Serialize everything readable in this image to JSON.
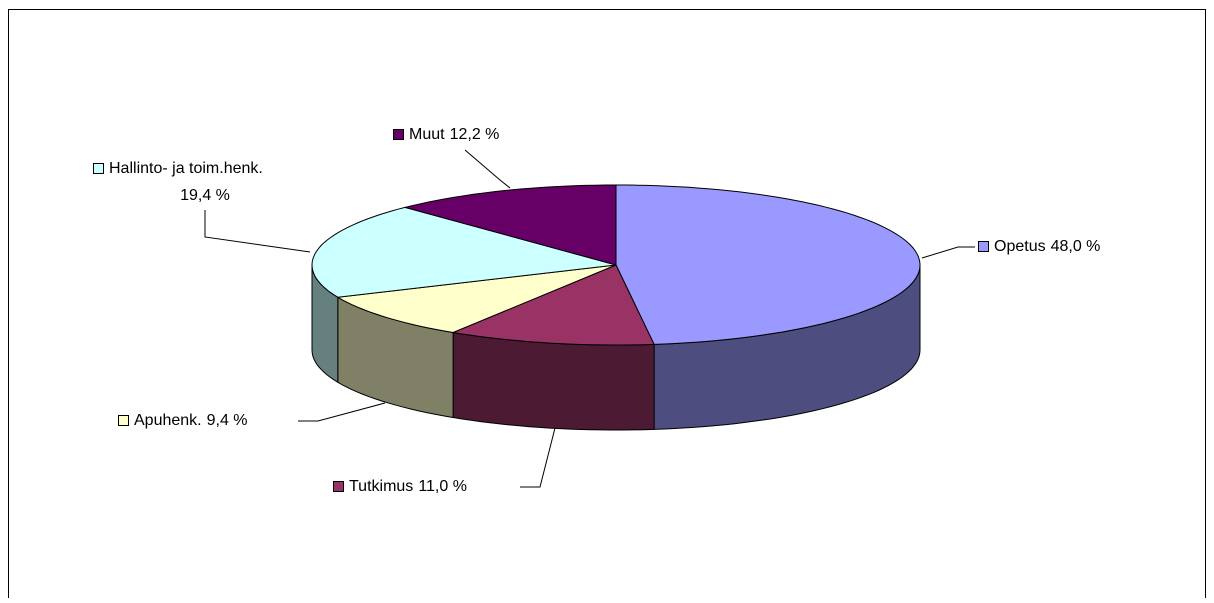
{
  "chart_data": {
    "type": "pie3d",
    "categories": [
      "Opetus",
      "Tutkimus",
      "Apuhenk.",
      "Hallinto- ja toim.henk.",
      "Muut"
    ],
    "values": [
      48.0,
      11.0,
      9.4,
      19.4,
      12.2
    ],
    "value_labels": [
      "48,0 %",
      "11,0 %",
      "9,4 %",
      "19,4 %",
      "12,2 %"
    ],
    "colors": [
      "#9999ff",
      "#993366",
      "#ffffcc",
      "#ccffff",
      "#660066"
    ]
  }
}
